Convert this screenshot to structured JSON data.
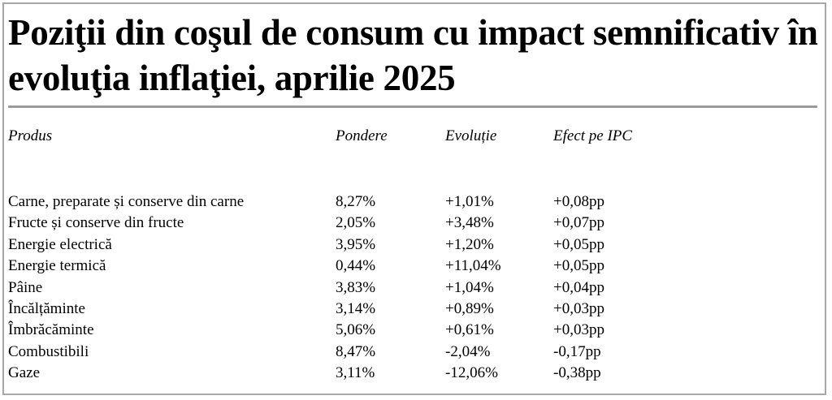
{
  "header": {
    "title": "Poziţii din coşul de consum cu impact semnificativ în evoluţia inflaţiei, aprilie 2025"
  },
  "table": {
    "columns": [
      "Produs",
      "Pondere",
      "Evoluție",
      "Efect pe IPC"
    ],
    "rows": [
      [
        "Carne, preparate și conserve din carne",
        "8,27%",
        "+1,01%",
        "+0,08pp"
      ],
      [
        "Fructe și conserve din fructe",
        "2,05%",
        "+3,48%",
        "+0,07pp"
      ],
      [
        "Energie electrică",
        "3,95%",
        "+1,20%",
        "+0,05pp"
      ],
      [
        "Energie termică",
        "0,44%",
        "+11,04%",
        "+0,05pp"
      ],
      [
        "Pâine",
        "3,83%",
        "+1,04%",
        "+0,04pp"
      ],
      [
        "Încălțăminte",
        "3,14%",
        "+0,89%",
        "+0,03pp"
      ],
      [
        "Îmbrăcăminte",
        "5,06%",
        "+0,61%",
        "+0,03pp"
      ],
      [
        "Combustibili",
        "8,47%",
        "-2,04%",
        "-0,17pp"
      ],
      [
        "Gaze",
        "3,11%",
        "-12,06%",
        "-0,38pp"
      ]
    ]
  }
}
